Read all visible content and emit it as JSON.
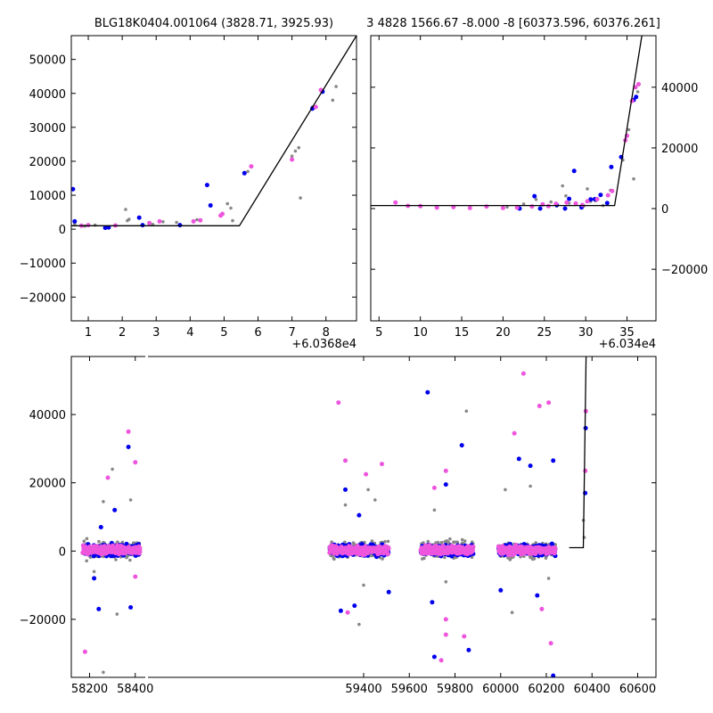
{
  "chart_data": [
    {
      "type": "scatter",
      "title": "BLG18K0404.001064 (3828.71, 3925.93)",
      "x_offset_label": "+6.0368e4",
      "xlim": [
        0.5,
        8.9
      ],
      "ylim": [
        -27000,
        57000
      ],
      "xticks": [
        1,
        2,
        3,
        4,
        5,
        6,
        7,
        8
      ],
      "yticks": [
        -20000,
        -10000,
        0,
        10000,
        20000,
        30000,
        40000,
        50000
      ],
      "ytick_side": "left",
      "colors": {
        "gray": "#888888",
        "blue": "#0000ee",
        "pink": "#ee55dd",
        "line": "#000000"
      },
      "model": [
        [
          0.5,
          1000
        ],
        [
          5.45,
          1000
        ],
        [
          8.9,
          57000
        ]
      ],
      "series": [
        {
          "color": "gray",
          "points": [
            [
              0.6,
              1500
            ],
            [
              0.9,
              900
            ],
            [
              1.2,
              1200
            ],
            [
              1.6,
              600
            ],
            [
              2.1,
              5800
            ],
            [
              2.15,
              2500
            ],
            [
              2.2,
              2900
            ],
            [
              2.6,
              1200
            ],
            [
              2.9,
              1400
            ],
            [
              3.2,
              2200
            ],
            [
              3.6,
              2000
            ],
            [
              4.2,
              2800
            ],
            [
              5.1,
              7500
            ],
            [
              5.2,
              6200
            ],
            [
              5.25,
              2500
            ],
            [
              5.7,
              17000
            ],
            [
              7.0,
              21500
            ],
            [
              7.1,
              23000
            ],
            [
              7.2,
              24000
            ],
            [
              7.25,
              9200
            ],
            [
              7.6,
              36000
            ],
            [
              7.9,
              41000
            ],
            [
              8.2,
              38000
            ],
            [
              8.3,
              42000
            ]
          ]
        },
        {
          "color": "blue",
          "points": [
            [
              0.55,
              11800
            ],
            [
              0.6,
              2300
            ],
            [
              1.5,
              400
            ],
            [
              1.6,
              500
            ],
            [
              2.5,
              3400
            ],
            [
              2.6,
              1200
            ],
            [
              3.7,
              1200
            ],
            [
              4.5,
              13000
            ],
            [
              4.6,
              7000
            ],
            [
              5.6,
              16500
            ],
            [
              7.6,
              35500
            ],
            [
              7.9,
              40500
            ]
          ]
        },
        {
          "color": "pink",
          "points": [
            [
              0.8,
              1000
            ],
            [
              1.0,
              1200
            ],
            [
              1.8,
              1100
            ],
            [
              2.8,
              1800
            ],
            [
              3.1,
              2300
            ],
            [
              4.1,
              2300
            ],
            [
              4.3,
              2600
            ],
            [
              4.9,
              4000
            ],
            [
              4.95,
              4500
            ],
            [
              5.8,
              18500
            ],
            [
              7.0,
              20500
            ],
            [
              7.7,
              36000
            ],
            [
              7.85,
              41000
            ]
          ]
        }
      ]
    },
    {
      "type": "scatter",
      "title": "3 4828 1566.67 -8.000 -8 [60373.596, 60376.261]",
      "x_offset_label": "+6.034e4",
      "xlim": [
        4.0,
        38.5
      ],
      "ylim": [
        -37000,
        57000
      ],
      "xticks": [
        5,
        10,
        15,
        20,
        25,
        30,
        35
      ],
      "yticks": [
        -20000,
        0,
        20000,
        40000
      ],
      "ytick_side": "right",
      "colors": {
        "gray": "#888888",
        "blue": "#0000ee",
        "pink": "#ee55dd",
        "line": "#000000"
      },
      "model": [
        [
          4.0,
          1000
        ],
        [
          33.5,
          1000
        ],
        [
          36.8,
          57000
        ]
      ],
      "series": [
        {
          "color": "gray",
          "points": [
            [
              20.5,
              500
            ],
            [
              22.5,
              1500
            ],
            [
              24.0,
              3000
            ],
            [
              25.8,
              2200
            ],
            [
              26.5,
              800
            ],
            [
              27.2,
              7500
            ],
            [
              27.6,
              4200
            ],
            [
              28.0,
              1800
            ],
            [
              29.8,
              900
            ],
            [
              30.2,
              6500
            ],
            [
              30.6,
              2400
            ],
            [
              31.2,
              2600
            ],
            [
              32.1,
              1000
            ],
            [
              33.0,
              6000
            ],
            [
              34.5,
              16000
            ],
            [
              35.2,
              26000
            ],
            [
              35.8,
              9800
            ],
            [
              36.1,
              40000
            ],
            [
              36.3,
              38500
            ]
          ]
        },
        {
          "color": "blue",
          "points": [
            [
              22.0,
              0
            ],
            [
              23.8,
              4100
            ],
            [
              24.5,
              0
            ],
            [
              26.5,
              1200
            ],
            [
              27.5,
              0
            ],
            [
              28.0,
              3200
            ],
            [
              28.6,
              12400
            ],
            [
              29.5,
              400
            ],
            [
              30.6,
              3000
            ],
            [
              31.1,
              3100
            ],
            [
              31.8,
              4500
            ],
            [
              32.6,
              1800
            ],
            [
              33.1,
              13700
            ],
            [
              34.3,
              17000
            ],
            [
              35.8,
              35800
            ],
            [
              36.1,
              36800
            ]
          ]
        },
        {
          "color": "pink",
          "points": [
            [
              7.0,
              2000
            ],
            [
              8.5,
              900
            ],
            [
              10.0,
              800
            ],
            [
              12.0,
              300
            ],
            [
              14.0,
              500
            ],
            [
              16.0,
              200
            ],
            [
              18.0,
              700
            ],
            [
              20.0,
              200
            ],
            [
              21.7,
              300
            ],
            [
              23.5,
              700
            ],
            [
              24.8,
              1400
            ],
            [
              25.5,
              800
            ],
            [
              26.4,
              1600
            ],
            [
              27.7,
              2000
            ],
            [
              28.8,
              1700
            ],
            [
              29.6,
              1200
            ],
            [
              30.2,
              2400
            ],
            [
              31.4,
              3100
            ],
            [
              32.7,
              4400
            ],
            [
              33.2,
              5800
            ],
            [
              34.8,
              22500
            ],
            [
              35.0,
              24000
            ],
            [
              35.6,
              35500
            ],
            [
              36.0,
              40000
            ],
            [
              36.4,
              41000
            ]
          ]
        }
      ]
    },
    {
      "type": "scatter",
      "title": "",
      "xlim": [
        58120,
        60680
      ],
      "ylim": [
        -37000,
        57000
      ],
      "xticks": [
        58200,
        58400,
        59400,
        59600,
        59800,
        60000,
        60200,
        60400,
        60600
      ],
      "yticks": [
        -20000,
        0,
        20000,
        40000
      ],
      "ytick_side": "left",
      "axis_break_x": 58450,
      "xticks_after_break": [
        59400,
        59600,
        59800,
        60000,
        60200,
        60400,
        60600
      ],
      "colors": {
        "gray": "#888888",
        "blue": "#0000ee",
        "pink": "#ee55dd",
        "line": "#000000"
      },
      "model": [
        [
          60300,
          1000
        ],
        [
          60362,
          1000
        ],
        [
          60374,
          57000
        ]
      ],
      "season_clusters": [
        {
          "x_from": 58170,
          "x_to": 58420,
          "seed": 11
        },
        {
          "x_from": 59250,
          "x_to": 59510,
          "seed": 23
        },
        {
          "x_from": 59650,
          "x_to": 59880,
          "seed": 37
        },
        {
          "x_from": 59990,
          "x_to": 60240,
          "seed": 53
        }
      ],
      "outliers": [
        {
          "color": "gray",
          "points": [
            [
              58260,
              14500
            ],
            [
              58300,
              24000
            ],
            [
              58380,
              15000
            ],
            [
              58260,
              -35500
            ],
            [
              58320,
              -18500
            ],
            [
              58220,
              -6000
            ],
            [
              59320,
              13500
            ],
            [
              59420,
              18000
            ],
            [
              59450,
              15000
            ],
            [
              59380,
              -21500
            ],
            [
              59400,
              -10000
            ],
            [
              59710,
              12000
            ],
            [
              59850,
              41000
            ],
            [
              59760,
              -9000
            ],
            [
              60020,
              18000
            ],
            [
              60130,
              19000
            ],
            [
              60050,
              -18000
            ],
            [
              60210,
              -8000
            ],
            [
              60362,
              9000
            ],
            [
              60366,
              4000
            ]
          ]
        },
        {
          "color": "blue",
          "points": [
            [
              58250,
              7000
            ],
            [
              58310,
              12000
            ],
            [
              58370,
              30500
            ],
            [
              58380,
              -16500
            ],
            [
              58240,
              -17000
            ],
            [
              58220,
              -8000
            ],
            [
              59320,
              18000
            ],
            [
              59380,
              10500
            ],
            [
              59300,
              -17500
            ],
            [
              59360,
              -16000
            ],
            [
              59510,
              -12000
            ],
            [
              59680,
              46500
            ],
            [
              59830,
              31000
            ],
            [
              59760,
              19500
            ],
            [
              59700,
              -15000
            ],
            [
              59710,
              -31000
            ],
            [
              59860,
              -29000
            ],
            [
              60080,
              27000
            ],
            [
              60130,
              25000
            ],
            [
              60230,
              26500
            ],
            [
              60000,
              -11500
            ],
            [
              60230,
              -36500
            ],
            [
              60160,
              -13000
            ],
            [
              60370,
              17000
            ],
            [
              60372,
              36000
            ]
          ]
        },
        {
          "color": "pink",
          "points": [
            [
              58180,
              -29500
            ],
            [
              58280,
              21500
            ],
            [
              58370,
              35000
            ],
            [
              58400,
              26000
            ],
            [
              58400,
              -7500
            ],
            [
              59290,
              43500
            ],
            [
              59320,
              26500
            ],
            [
              59410,
              22500
            ],
            [
              59480,
              25500
            ],
            [
              59330,
              -18000
            ],
            [
              59760,
              23500
            ],
            [
              59710,
              18500
            ],
            [
              59760,
              -20000
            ],
            [
              59760,
              -24500
            ],
            [
              59740,
              -32000
            ],
            [
              59840,
              -25000
            ],
            [
              60060,
              34500
            ],
            [
              60100,
              52000
            ],
            [
              60170,
              42500
            ],
            [
              60210,
              43500
            ],
            [
              60180,
              -17000
            ],
            [
              60220,
              -27000
            ],
            [
              60371,
              23500
            ],
            [
              60373,
              41000
            ]
          ]
        }
      ]
    }
  ]
}
